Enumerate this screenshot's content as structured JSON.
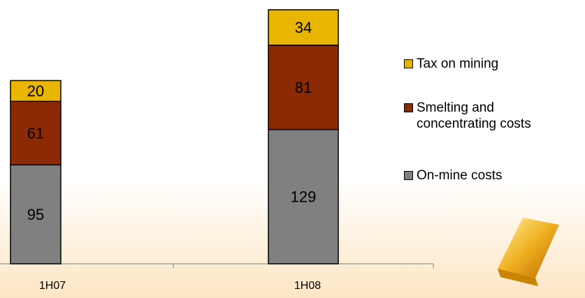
{
  "chart_data": {
    "type": "stacked-bar",
    "categories": [
      "1H07",
      "1H08"
    ],
    "series": [
      {
        "name": "On-mine costs",
        "color": "#808080",
        "values": [
          95,
          129
        ]
      },
      {
        "name": "Smelting and concentrating costs",
        "color": "#8b2a05",
        "values": [
          61,
          81
        ]
      },
      {
        "name": "Tax on mining",
        "color": "#e8b600",
        "values": [
          20,
          34
        ]
      }
    ]
  }
}
